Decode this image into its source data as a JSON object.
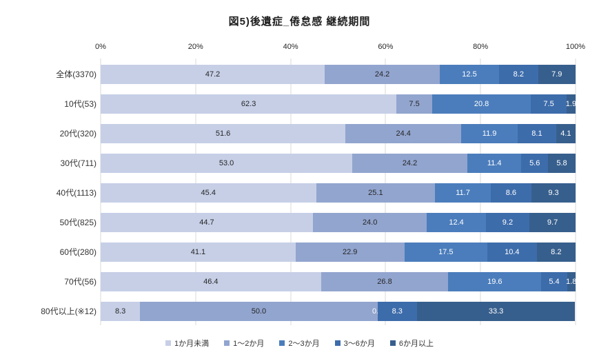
{
  "title": "図5)後遺症_倦怠感 継続期間",
  "chart_data": {
    "type": "bar",
    "variant": "horizontal-stacked-percent",
    "title": "図5)後遺症_倦怠感 継続期間",
    "xlim": [
      0,
      100
    ],
    "x_ticks": [
      "0%",
      "20%",
      "40%",
      "60%",
      "80%",
      "100%"
    ],
    "grid": "vertical-at-20pct",
    "legend_position": "bottom",
    "categories": [
      "全体(3370)",
      "10代(53)",
      "20代(320)",
      "30代(711)",
      "40代(1113)",
      "50代(825)",
      "60代(280)",
      "70代(56)",
      "80代以上(※12)"
    ],
    "series": [
      {
        "name": "1か月未満",
        "color": "#c6cfe6",
        "label_color": "#262626",
        "values": [
          47.2,
          62.3,
          51.6,
          53.0,
          45.4,
          44.7,
          41.1,
          46.4,
          8.3
        ]
      },
      {
        "name": "1〜2か月",
        "color": "#92a5cf",
        "label_color": "#262626",
        "values": [
          24.2,
          7.5,
          24.4,
          24.2,
          25.1,
          24.0,
          22.9,
          26.8,
          50.0
        ]
      },
      {
        "name": "2〜3か月",
        "color": "#4b7dbc",
        "label_color": "#ffffff",
        "values": [
          12.5,
          20.8,
          11.9,
          11.4,
          11.7,
          12.4,
          17.5,
          19.6,
          0.0
        ]
      },
      {
        "name": "3〜6か月",
        "color": "#3d6cab",
        "label_color": "#ffffff",
        "values": [
          8.2,
          7.5,
          8.1,
          5.6,
          8.6,
          9.2,
          10.4,
          5.4,
          8.3
        ]
      },
      {
        "name": "6か月以上",
        "color": "#375f8d",
        "label_color": "#ffffff",
        "values": [
          7.9,
          1.9,
          4.1,
          5.8,
          9.3,
          9.7,
          8.2,
          1.8,
          33.3
        ]
      }
    ]
  }
}
